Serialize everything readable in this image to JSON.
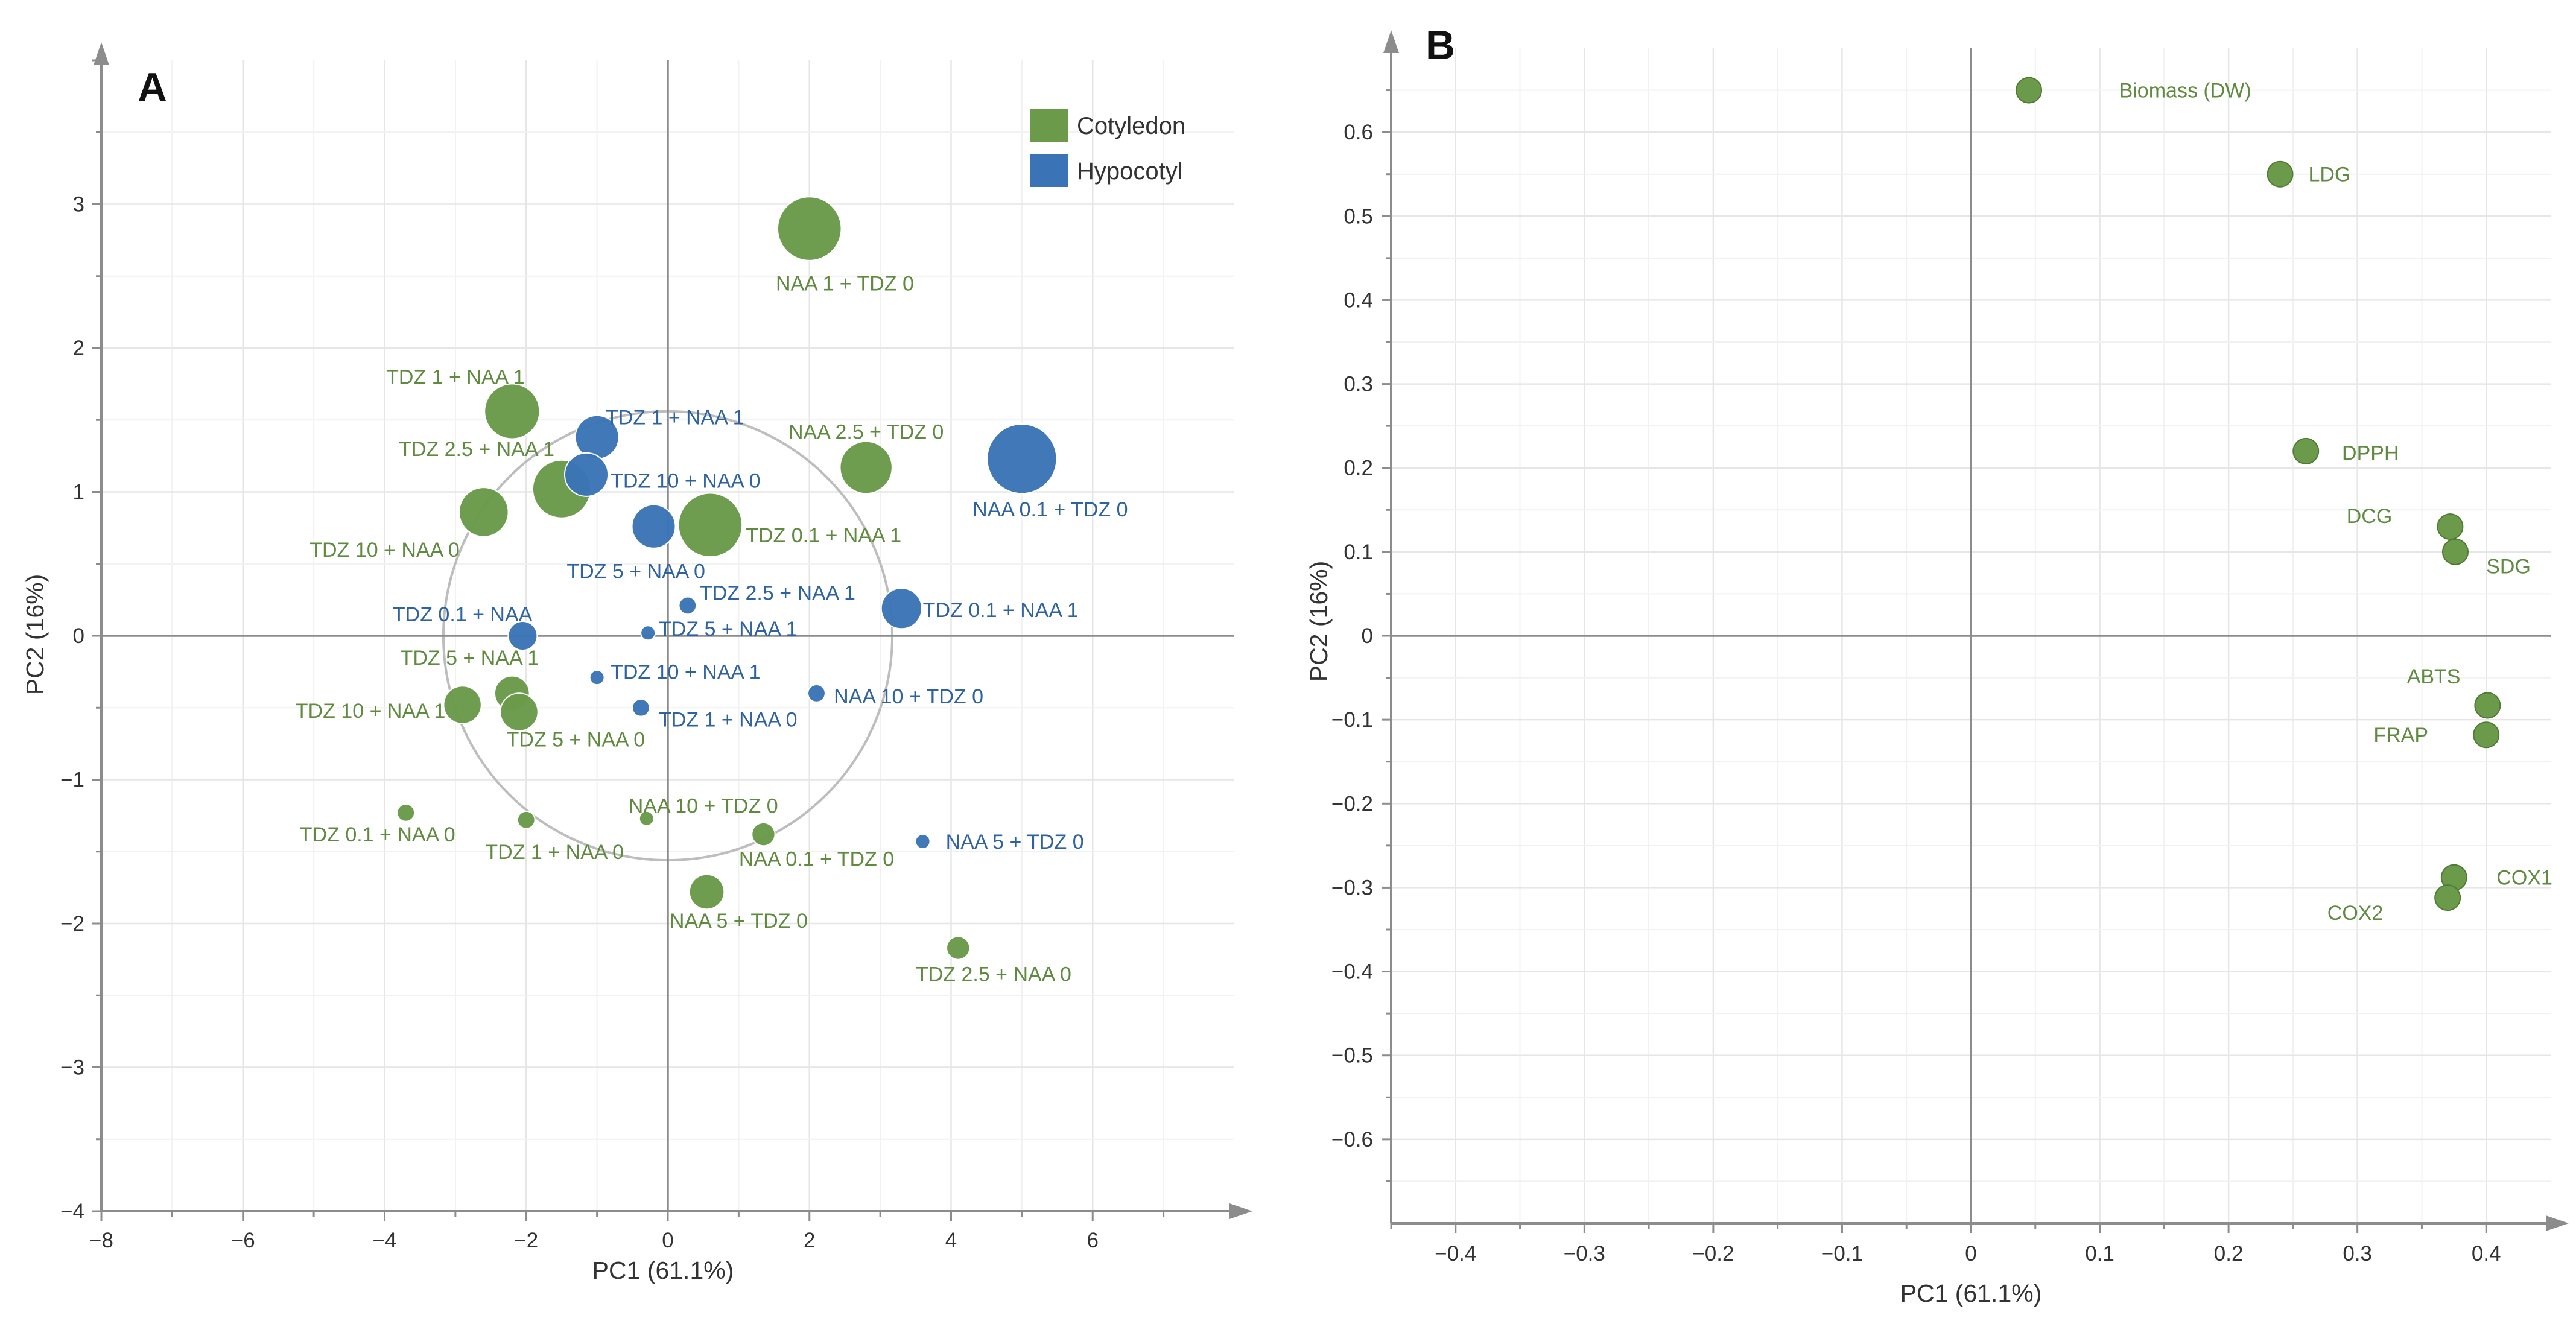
{
  "colors": {
    "cotyledon": "#6a9a4a",
    "hypocotyl": "#3a74b6",
    "label_cotyledon": "#5f8a3f",
    "label_hypocotyl": "#2f62a0"
  },
  "chart_data": [
    {
      "type": "scatter",
      "panel": "A",
      "xlabel": "PC1 (61.1%)",
      "ylabel": "PC2 (16%)",
      "xlim": [
        -8,
        8
      ],
      "ylim": [
        -4,
        4
      ],
      "xticks": [
        -8,
        -6,
        -4,
        -2,
        0,
        2,
        4,
        6
      ],
      "yticks": [
        -4,
        -3,
        -2,
        -1,
        0,
        1,
        2,
        3
      ],
      "circle_radius": 3.17,
      "legend": [
        {
          "name": "Cotyledon",
          "group": "cotyledon"
        },
        {
          "name": "Hypocotyl",
          "group": "hypocotyl"
        }
      ],
      "points": [
        {
          "label": "NAA 1 + TDZ 0",
          "group": "cotyledon",
          "x": 2.0,
          "y": 2.83,
          "size": 2.2,
          "lx": 2.5,
          "ly": 2.45
        },
        {
          "label": "TDZ 1 + NAA 1",
          "group": "cotyledon",
          "x": -2.2,
          "y": 1.56,
          "size": 1.9,
          "lx": -3.0,
          "ly": 1.8
        },
        {
          "label": "TDZ 2.5 + NAA 1",
          "group": "cotyledon",
          "x": -1.5,
          "y": 1.02,
          "size": 2.0,
          "lx": -2.7,
          "ly": 1.3
        },
        {
          "label": "TDZ 10 + NAA 0",
          "group": "cotyledon",
          "x": -2.6,
          "y": 0.86,
          "size": 1.7,
          "lx": -4.0,
          "ly": 0.6
        },
        {
          "label": "TDZ 0.1 + NAA 1",
          "group": "cotyledon",
          "x": 0.6,
          "y": 0.77,
          "size": 2.2,
          "lx": 2.2,
          "ly": 0.7
        },
        {
          "label": "NAA 2.5 + TDZ 0",
          "group": "cotyledon",
          "x": 2.8,
          "y": 1.17,
          "size": 1.8,
          "lx": 2.8,
          "ly": 1.42
        },
        {
          "label": "TDZ 5 + NAA 1",
          "group": "cotyledon",
          "x": -2.2,
          "y": -0.4,
          "size": 1.2,
          "lx": -2.8,
          "ly": -0.15
        },
        {
          "label": "TDZ 10 + NAA 1",
          "group": "cotyledon",
          "x": -2.9,
          "y": -0.48,
          "size": 1.3,
          "lx": -4.2,
          "ly": -0.52
        },
        {
          "label": "TDZ 5 + NAA 0",
          "group": "cotyledon",
          "x": -2.1,
          "y": -0.53,
          "size": 1.3,
          "lx": -1.3,
          "ly": -0.72
        },
        {
          "label": "TDZ 0.1 + NAA 0",
          "group": "cotyledon",
          "x": -3.7,
          "y": -1.23,
          "size": 0.6,
          "lx": -4.1,
          "ly": -1.38
        },
        {
          "label": "TDZ 1 + NAA 0",
          "group": "cotyledon",
          "x": -2.0,
          "y": -1.28,
          "size": 0.6,
          "lx": -1.6,
          "ly": -1.5
        },
        {
          "label": "NAA 10 + TDZ 0",
          "group": "cotyledon",
          "x": -0.3,
          "y": -1.27,
          "size": 0.5,
          "lx": 0.5,
          "ly": -1.18
        },
        {
          "label": "NAA 0.1 + TDZ 0",
          "group": "cotyledon",
          "x": 1.35,
          "y": -1.38,
          "size": 0.8,
          "lx": 2.1,
          "ly": -1.55
        },
        {
          "label": "NAA 5 + TDZ 0",
          "group": "cotyledon",
          "x": 0.55,
          "y": -1.78,
          "size": 1.2,
          "lx": 1.0,
          "ly": -1.98
        },
        {
          "label": "TDZ 2.5 + NAA 0",
          "group": "cotyledon",
          "x": 4.1,
          "y": -2.17,
          "size": 0.8,
          "lx": 4.6,
          "ly": -2.35
        },
        {
          "label": "TDZ 1 + NAA 1",
          "group": "hypocotyl",
          "x": -1.0,
          "y": 1.38,
          "size": 1.5,
          "lx": 0.1,
          "ly": 1.52
        },
        {
          "label": "TDZ 10 + NAA 0",
          "group": "hypocotyl",
          "x": -1.15,
          "y": 1.12,
          "size": 1.5,
          "lx": 0.25,
          "ly": 1.08
        },
        {
          "label": "NAA 0.1 + TDZ 0",
          "group": "hypocotyl",
          "x": 5.0,
          "y": 1.23,
          "size": 2.4,
          "lx": 5.4,
          "ly": 0.88
        },
        {
          "label": "TDZ 5 + NAA 0",
          "group": "hypocotyl",
          "x": -0.2,
          "y": 0.76,
          "size": 1.5,
          "lx": -0.45,
          "ly": 0.45
        },
        {
          "label": "TDZ 2.5 + NAA 1",
          "group": "hypocotyl",
          "x": 0.28,
          "y": 0.21,
          "size": 0.6,
          "lx": 1.55,
          "ly": 0.3
        },
        {
          "label": "TDZ 5 + NAA 1",
          "group": "hypocotyl",
          "x": -0.28,
          "y": 0.02,
          "size": 0.5,
          "lx": 0.85,
          "ly": 0.05
        },
        {
          "label": "TDZ 0.1 + NAA",
          "group": "hypocotyl",
          "x": -2.05,
          "y": 0.0,
          "size": 1.0,
          "lx": -2.9,
          "ly": 0.15
        },
        {
          "label": "TDZ 0.1 + NAA 1",
          "group": "hypocotyl",
          "x": 3.3,
          "y": 0.19,
          "size": 1.4,
          "lx": 4.7,
          "ly": 0.18
        },
        {
          "label": "TDZ 10 + NAA 1",
          "group": "hypocotyl",
          "x": -1.0,
          "y": -0.29,
          "size": 0.5,
          "lx": 0.25,
          "ly": -0.25
        },
        {
          "label": "NAA 10 + TDZ 0",
          "group": "hypocotyl",
          "x": 2.1,
          "y": -0.4,
          "size": 0.6,
          "lx": 3.4,
          "ly": -0.42
        },
        {
          "label": "TDZ 1 + NAA 0",
          "group": "hypocotyl",
          "x": -0.38,
          "y": -0.5,
          "size": 0.6,
          "lx": 0.85,
          "ly": -0.58
        },
        {
          "label": "NAA 5 + TDZ 0",
          "group": "hypocotyl",
          "x": 3.6,
          "y": -1.43,
          "size": 0.5,
          "lx": 4.9,
          "ly": -1.43
        }
      ]
    },
    {
      "type": "scatter",
      "panel": "B",
      "xlabel": "PC1 (61.1%)",
      "ylabel": "PC2 (16%)",
      "xlim": [
        -0.45,
        0.45
      ],
      "ylim": [
        -0.7,
        0.7
      ],
      "xticks": [
        -0.4,
        -0.3,
        -0.2,
        -0.1,
        0,
        0.1,
        0.2,
        0.3,
        0.4
      ],
      "yticks": [
        -0.6,
        -0.5,
        -0.4,
        -0.3,
        -0.2,
        -0.1,
        0,
        0.1,
        0.2,
        0.3,
        0.4,
        0.5,
        0.6
      ],
      "points": [
        {
          "label": "Biomass (DW)",
          "x": 0.045,
          "y": 0.65,
          "lx": 0.115,
          "ly": 0.65
        },
        {
          "label": "LDG",
          "x": 0.24,
          "y": 0.55,
          "lx": 0.262,
          "ly": 0.55
        },
        {
          "label": "DPPH",
          "x": 0.26,
          "y": 0.22,
          "lx": 0.288,
          "ly": 0.218
        },
        {
          "label": "DCG",
          "x": 0.372,
          "y": 0.13,
          "lx": 0.327,
          "ly": 0.143
        },
        {
          "label": "SDG",
          "x": 0.376,
          "y": 0.1,
          "lx": 0.4,
          "ly": 0.083
        },
        {
          "label": "ABTS",
          "x": 0.401,
          "y": -0.083,
          "lx": 0.38,
          "ly": -0.048
        },
        {
          "label": "FRAP",
          "x": 0.4,
          "y": -0.118,
          "lx": 0.355,
          "ly": -0.118
        },
        {
          "label": "COX1",
          "x": 0.375,
          "y": -0.288,
          "lx": 0.408,
          "ly": -0.288
        },
        {
          "label": "COX2",
          "x": 0.37,
          "y": -0.312,
          "lx": 0.32,
          "ly": -0.33
        }
      ]
    }
  ],
  "panels": {
    "a": {
      "letter": "A",
      "xlabel": "PC1 (61.1%)",
      "ylabel": "PC2 (16%)",
      "legend_cotyledon": "Cotyledon",
      "legend_hypocotyl": "Hypocotyl"
    },
    "b": {
      "letter": "B",
      "xlabel": "PC1 (61.1%)",
      "ylabel": "PC2 (16%)"
    }
  }
}
